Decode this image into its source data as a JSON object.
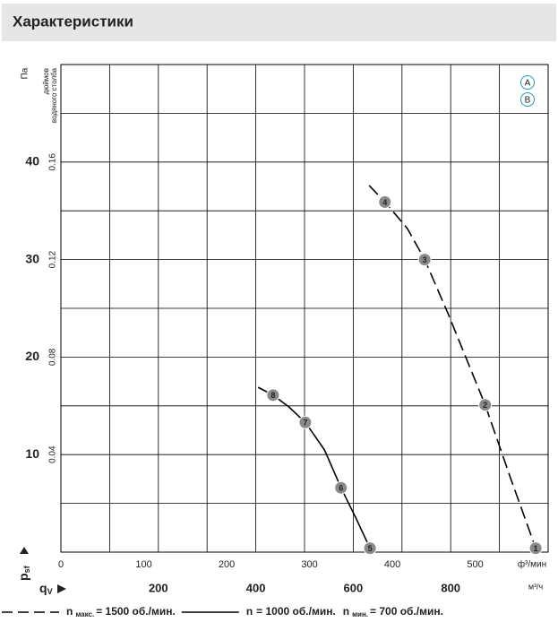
{
  "chart_data": {
    "type": "line",
    "title": "Характеристики",
    "y_label": "Па",
    "y2_label": [
      "дюймов",
      "водяного столба"
    ],
    "x_label": "ф³/мин",
    "x2_label": "м³/ч",
    "y_symbol": "p",
    "y_symbol_sub": "sf",
    "x_symbol": "q",
    "x_symbol_sub": "V",
    "badges": [
      "A",
      "B"
    ],
    "xlim": [
      0,
      588
    ],
    "xticks": [
      0,
      100,
      200,
      300,
      400,
      500
    ],
    "x2lim": [
      0,
      1000
    ],
    "x2ticks": [
      200,
      400,
      600,
      800
    ],
    "x2grid": [
      0,
      100,
      200,
      300,
      400,
      500,
      600,
      700,
      800,
      900,
      1000
    ],
    "ylim": [
      0,
      50
    ],
    "yticks": [
      10,
      20,
      30,
      40
    ],
    "ygrid": [
      0,
      5,
      10,
      15,
      20,
      25,
      30,
      35,
      40,
      45,
      50
    ],
    "y2lim": [
      0,
      0.2
    ],
    "y2ticks": [
      0.04,
      0.08,
      0.12,
      0.16
    ],
    "series": [
      {
        "dash": true,
        "color": "#000000",
        "x": [
          372,
          391,
          418,
          439,
          467,
          489,
          512,
          543,
          573
        ],
        "values": [
          37.6,
          35.9,
          33.2,
          30,
          24.5,
          19.9,
          15.1,
          7.5,
          0.4
        ],
        "markers": [
          {
            "label": "1",
            "x": 573,
            "y": 0.4
          },
          {
            "label": "2",
            "x": 512,
            "y": 15.1
          },
          {
            "label": "3",
            "x": 439,
            "y": 30
          },
          {
            "label": "4",
            "x": 391,
            "y": 35.9
          }
        ]
      },
      {
        "dash": false,
        "color": "#000000",
        "x": [
          238,
          256,
          275,
          295,
          318,
          338,
          356,
          373
        ],
        "values": [
          16.9,
          16.1,
          14.9,
          13.3,
          10.5,
          6.6,
          3.5,
          0.4
        ],
        "markers": [
          {
            "label": "5",
            "x": 373,
            "y": 0.4
          },
          {
            "label": "6",
            "x": 338,
            "y": 6.6
          },
          {
            "label": "7",
            "x": 295,
            "y": 13.3
          },
          {
            "label": "8",
            "x": 256,
            "y": 16.1
          }
        ]
      }
    ],
    "legend": [
      {
        "style": "dash",
        "symbol": "n",
        "subscript": "макс.",
        "text": "= 1500 об./мин."
      },
      {
        "style": "solid",
        "symbol": "n",
        "text": "= 1000 об./мин."
      },
      {
        "style": "none",
        "symbol": "n",
        "subscript": "мин.",
        "text": "= 700 об./мин."
      }
    ]
  }
}
